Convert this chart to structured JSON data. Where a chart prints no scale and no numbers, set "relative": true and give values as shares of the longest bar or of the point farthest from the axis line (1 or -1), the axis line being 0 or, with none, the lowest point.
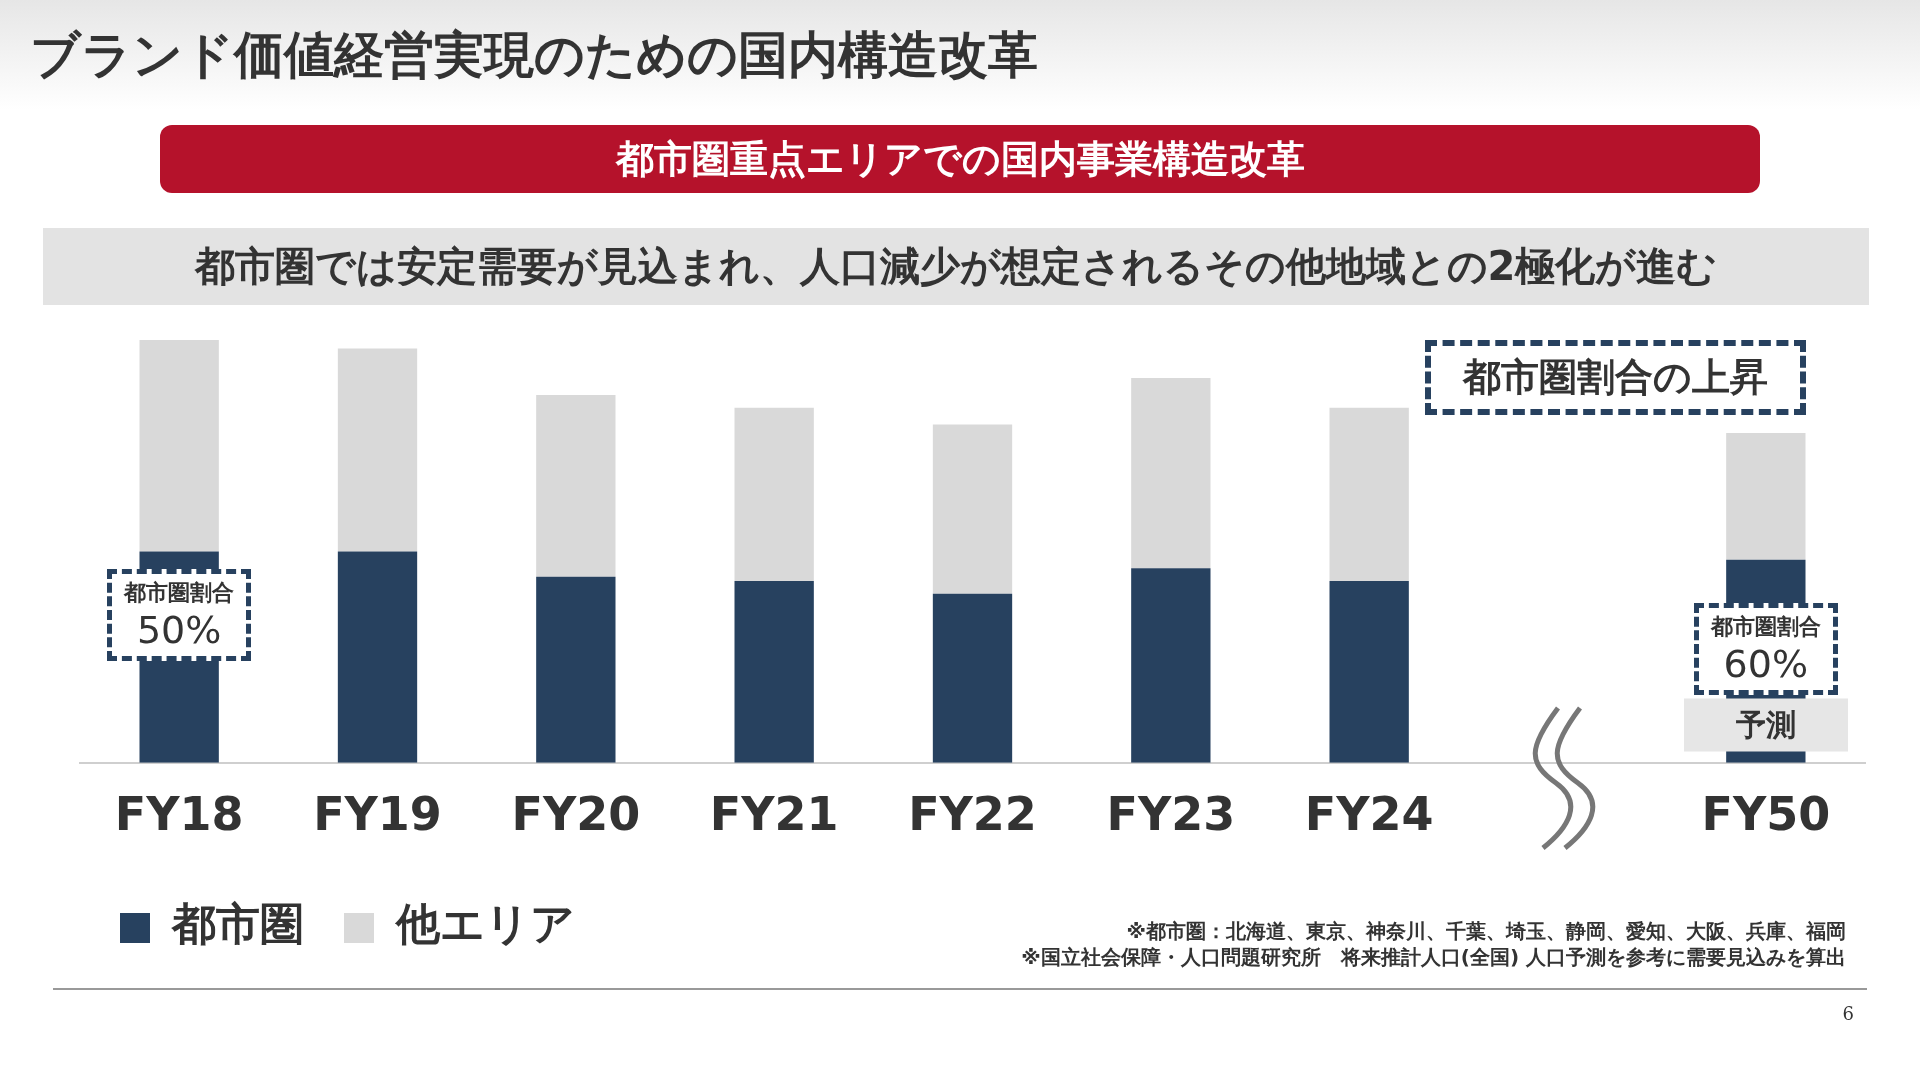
{
  "chart_data": {
    "type": "bar",
    "title": "ブランド価値経営実現のための国内構造改革",
    "subtitle": "都市圏重点エリアでの国内事業構造改革",
    "categories": [
      "FY18",
      "FY19",
      "FY20",
      "FY21",
      "FY22",
      "FY23",
      "FY24",
      null,
      "FY50"
    ],
    "stacked": true,
    "relative": true,
    "legend": "bottom left",
    "series": [
      {
        "name": "都市圏",
        "color": "#27415f",
        "values": [
          0.5,
          0.5,
          0.44,
          0.43,
          0.4,
          0.46,
          0.43,
          null,
          0.48
        ]
      },
      {
        "name": "他エリア",
        "color": "#d9d9d9",
        "values": [
          0.5,
          0.48,
          0.43,
          0.41,
          0.4,
          0.45,
          0.41,
          null,
          0.3
        ]
      }
    ],
    "annotations": [
      "都市圏では安定需要が見込まれ、人口減少が想定されるその他地域との2極化が進む",
      "都市圏割合の上昇",
      "※都市圏：北海道、東京、神奈川、千葉、埼玉、静岡、愛知、大阪、兵庫、福岡",
      "※国立社会保障・人口問題研究所　将来推計人口(全国) 人口予測を参考に需要見込みを算出",
      "6",
      "都市圏割合\n50%",
      "都市圏割合\n60%",
      "予測"
    ]
  }
}
